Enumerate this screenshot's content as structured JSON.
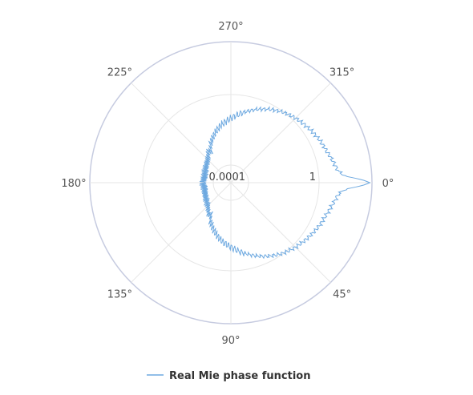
{
  "chart_data": {
    "type": "line",
    "coordinate_system": "polar",
    "direction": "clockwise",
    "angle_unit": "degrees",
    "angular_ticks": [
      "0°",
      "45°",
      "90°",
      "135°",
      "180°",
      "225°",
      "270°",
      "315°"
    ],
    "angular_tick_values": [
      0,
      45,
      90,
      135,
      180,
      225,
      270,
      315
    ],
    "radial_axis": {
      "scale": "log",
      "range": [
        1e-05,
        1000
      ],
      "tick_labels": [
        "0.0001",
        "1"
      ],
      "tick_values": [
        0.0001,
        1
      ]
    },
    "grid": true,
    "legend_position": "bottom",
    "series": [
      {
        "name": "Real Mie phase function",
        "color": "#6ea9e0",
        "angles": [
          0,
          1,
          2,
          3,
          4,
          5,
          6,
          8,
          10,
          12,
          15,
          18,
          20,
          25,
          30,
          35,
          40,
          45,
          50,
          55,
          60,
          65,
          70,
          75,
          80,
          85,
          90,
          95,
          100,
          105,
          110,
          115,
          118,
          120,
          122,
          125,
          128,
          130,
          135,
          140,
          145,
          150,
          155,
          160,
          165,
          170,
          175,
          180
        ],
        "values": [
          750,
          350,
          120,
          40,
          25,
          18,
          14,
          11,
          9.5,
          8,
          6.5,
          5.2,
          4.8,
          3.9,
          3.1,
          2.4,
          1.9,
          1.5,
          1.15,
          0.85,
          0.6,
          0.4,
          0.27,
          0.17,
          0.11,
          0.07,
          0.045,
          0.03,
          0.02,
          0.012,
          0.007,
          0.004,
          0.003,
          0.002,
          0.0013,
          0.0016,
          0.0012,
          0.001,
          0.0007,
          0.0006,
          0.0005,
          0.00045,
          0.0004,
          0.00038,
          0.00035,
          0.00035,
          0.00037,
          0.0004
        ]
      }
    ]
  }
}
